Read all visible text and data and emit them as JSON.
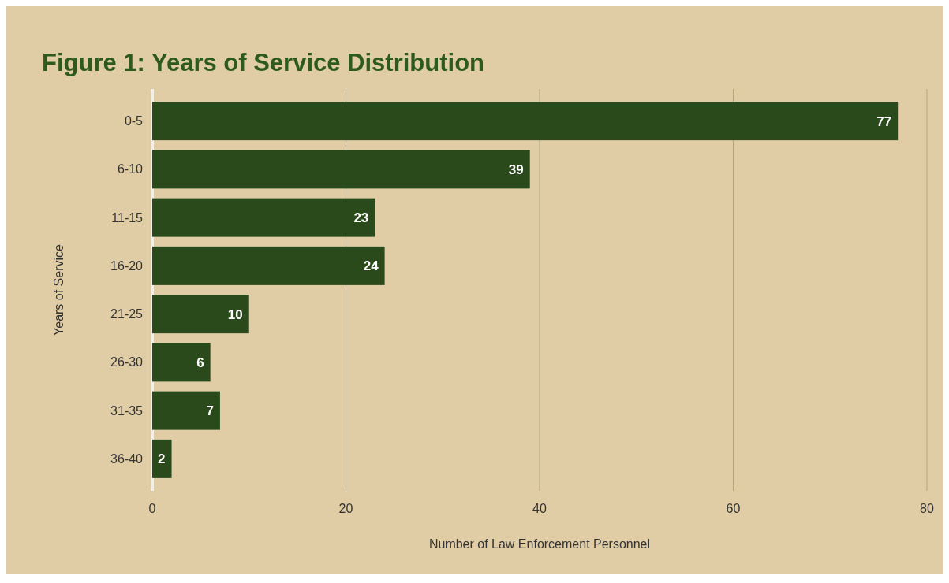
{
  "chart_data": {
    "type": "bar",
    "orientation": "horizontal",
    "title": "Figure 1: Years of Service Distribution",
    "xlabel": "Number of Law Enforcement Personnel",
    "ylabel": "Years of Service",
    "categories": [
      "0-5",
      "6-10",
      "11-15",
      "16-20",
      "21-25",
      "26-30",
      "31-35",
      "36-40"
    ],
    "values": [
      77,
      39,
      23,
      24,
      10,
      6,
      7,
      2
    ],
    "color": "#2b4a1c",
    "xlim": [
      0,
      80
    ],
    "xticks": [
      0,
      20,
      40,
      60,
      80
    ],
    "grid": "x",
    "data_labels": true
  }
}
